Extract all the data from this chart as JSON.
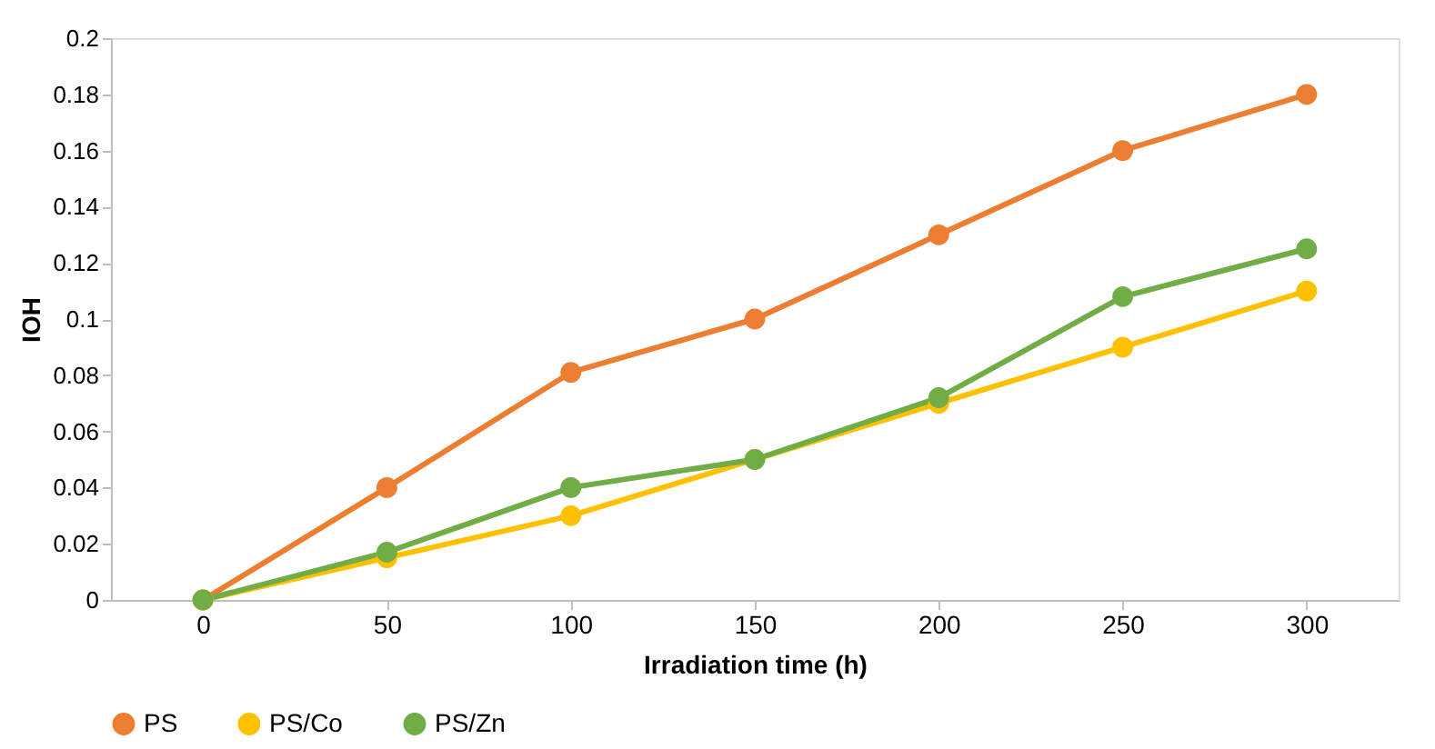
{
  "chart_data": {
    "type": "line",
    "xlabel": "Irradiation time (h)",
    "ylabel": "IOH",
    "categories": [
      "0",
      "50",
      "100",
      "150",
      "200",
      "250",
      "300"
    ],
    "series": [
      {
        "name": "PS",
        "color": "#ed7d31",
        "values": [
          0,
          0.04,
          0.081,
          0.1,
          0.13,
          0.16,
          0.18
        ]
      },
      {
        "name": "PS/Co",
        "color": "#ffc000",
        "values": [
          0,
          0.015,
          0.03,
          0.05,
          0.07,
          0.09,
          0.11
        ]
      },
      {
        "name": "PS/Zn",
        "color": "#70ad47",
        "values": [
          0,
          0.017,
          0.04,
          0.05,
          0.072,
          0.108,
          0.125
        ]
      }
    ],
    "ylim": [
      0,
      0.2
    ],
    "yticks": [
      0,
      0.02,
      0.04,
      0.06,
      0.08,
      0.1,
      0.12,
      0.14,
      0.16,
      0.18,
      0.2
    ],
    "grid": false,
    "legend": "bottom",
    "marker": "circle",
    "line_style": "solid"
  }
}
